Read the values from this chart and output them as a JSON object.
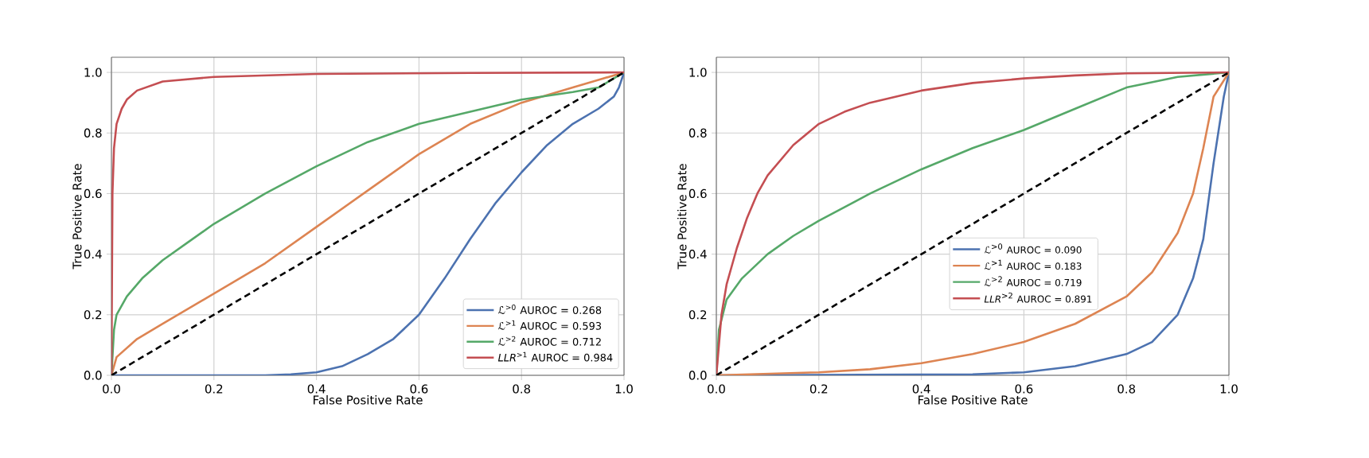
{
  "chart_data": [
    {
      "type": "line",
      "xlabel": "False Positive Rate",
      "ylabel": "True Positive Rate",
      "xlim": [
        0,
        1
      ],
      "ylim": [
        0,
        1.05
      ],
      "xticks": [
        {
          "value": 0,
          "label": "0.0"
        },
        {
          "value": 0.2,
          "label": "0.2"
        },
        {
          "value": 0.4,
          "label": "0.4"
        },
        {
          "value": 0.6,
          "label": "0.6"
        },
        {
          "value": 0.8,
          "label": "0.8"
        },
        {
          "value": 1,
          "label": "1.0"
        }
      ],
      "yticks": [
        {
          "value": 0,
          "label": "0.0"
        },
        {
          "value": 0.2,
          "label": "0.2"
        },
        {
          "value": 0.4,
          "label": "0.4"
        },
        {
          "value": 0.6,
          "label": "0.6"
        },
        {
          "value": 0.8,
          "label": "0.8"
        },
        {
          "value": 1,
          "label": "1.0"
        }
      ],
      "grid": true,
      "legend": "bottom right",
      "series": [
        {
          "name": "ℒ$^{>0}$ AUROC = 0.268",
          "color": "#4c72b0",
          "x": [
            0,
            0.3,
            0.35,
            0.4,
            0.45,
            0.5,
            0.55,
            0.6,
            0.65,
            0.7,
            0.75,
            0.8,
            0.85,
            0.9,
            0.95,
            0.98,
            0.99,
            1
          ],
          "values": [
            0,
            0,
            0.003,
            0.01,
            0.03,
            0.07,
            0.12,
            0.2,
            0.32,
            0.45,
            0.57,
            0.67,
            0.76,
            0.83,
            0.88,
            0.92,
            0.95,
            1
          ]
        },
        {
          "name": "ℒ$^{>1}$ AUROC = 0.593",
          "color": "#dd8452",
          "x": [
            0,
            0.01,
            0.05,
            0.1,
            0.2,
            0.3,
            0.4,
            0.5,
            0.6,
            0.7,
            0.8,
            0.9,
            0.95,
            1
          ],
          "values": [
            0,
            0.06,
            0.12,
            0.17,
            0.27,
            0.37,
            0.49,
            0.61,
            0.73,
            0.83,
            0.9,
            0.95,
            0.975,
            1
          ]
        },
        {
          "name": "ℒ$^{>2}$ AUROC = 0.712",
          "color": "#55a868",
          "x": [
            0,
            0.005,
            0.01,
            0.03,
            0.06,
            0.1,
            0.15,
            0.2,
            0.3,
            0.4,
            0.5,
            0.6,
            0.7,
            0.8,
            0.9,
            0.95,
            1
          ],
          "values": [
            0,
            0.15,
            0.2,
            0.26,
            0.32,
            0.38,
            0.44,
            0.5,
            0.6,
            0.69,
            0.77,
            0.83,
            0.87,
            0.91,
            0.935,
            0.95,
            1
          ]
        },
        {
          "name": "*LLR*$^{>1}$ AUROC = 0.984",
          "color": "#c44e52",
          "x": [
            0,
            0.002,
            0.005,
            0.01,
            0.02,
            0.03,
            0.05,
            0.1,
            0.2,
            0.4,
            0.7,
            1
          ],
          "values": [
            0,
            0.6,
            0.75,
            0.83,
            0.88,
            0.91,
            0.94,
            0.97,
            0.985,
            0.995,
            0.998,
            1
          ]
        },
        {
          "color": "#000000",
          "line_style": "dashed",
          "x": [
            0,
            1
          ],
          "values": [
            0,
            1
          ]
        }
      ]
    },
    {
      "type": "line",
      "xlabel": "False Positive Rate",
      "ylabel": "True Positive Rate",
      "xlim": [
        0,
        1
      ],
      "ylim": [
        0,
        1.05
      ],
      "xticks": [
        {
          "value": 0,
          "label": "0.0"
        },
        {
          "value": 0.2,
          "label": "0.2"
        },
        {
          "value": 0.4,
          "label": "0.4"
        },
        {
          "value": 0.6,
          "label": "0.6"
        },
        {
          "value": 0.8,
          "label": "0.8"
        },
        {
          "value": 1,
          "label": "1.0"
        }
      ],
      "yticks": [
        {
          "value": 0,
          "label": "0.0"
        },
        {
          "value": 0.2,
          "label": "0.2"
        },
        {
          "value": 0.4,
          "label": "0.4"
        },
        {
          "value": 0.6,
          "label": "0.6"
        },
        {
          "value": 0.8,
          "label": "0.8"
        },
        {
          "value": 1,
          "label": "1.0"
        }
      ],
      "grid": true,
      "legend": "bottom right",
      "series": [
        {
          "name": "ℒ$^{>0}$ AUROC = 0.090",
          "color": "#4c72b0",
          "x": [
            0,
            0.5,
            0.6,
            0.7,
            0.8,
            0.85,
            0.9,
            0.93,
            0.95,
            0.97,
            0.99,
            1
          ],
          "values": [
            0,
            0.003,
            0.01,
            0.03,
            0.07,
            0.11,
            0.2,
            0.32,
            0.45,
            0.7,
            0.92,
            1
          ]
        },
        {
          "name": "ℒ$^{>1}$ AUROC = 0.183",
          "color": "#dd8452",
          "x": [
            0,
            0.2,
            0.3,
            0.4,
            0.5,
            0.6,
            0.7,
            0.8,
            0.85,
            0.9,
            0.93,
            0.95,
            0.97,
            1
          ],
          "values": [
            0,
            0.01,
            0.02,
            0.04,
            0.07,
            0.11,
            0.17,
            0.26,
            0.34,
            0.47,
            0.6,
            0.75,
            0.92,
            1
          ]
        },
        {
          "name": "ℒ$^{>2}$ AUROC = 0.719",
          "color": "#55a868",
          "x": [
            0,
            0.005,
            0.02,
            0.05,
            0.1,
            0.15,
            0.2,
            0.3,
            0.4,
            0.5,
            0.6,
            0.7,
            0.8,
            0.9,
            1
          ],
          "values": [
            0,
            0.15,
            0.25,
            0.32,
            0.4,
            0.46,
            0.51,
            0.6,
            0.68,
            0.75,
            0.81,
            0.88,
            0.95,
            0.985,
            1
          ]
        },
        {
          "name": "*LLR*$^{>2}$ AUROC = 0.891",
          "color": "#c44e52",
          "x": [
            0,
            0.01,
            0.02,
            0.04,
            0.06,
            0.08,
            0.1,
            0.15,
            0.2,
            0.25,
            0.3,
            0.4,
            0.5,
            0.6,
            0.7,
            0.8,
            1
          ],
          "values": [
            0,
            0.2,
            0.3,
            0.42,
            0.52,
            0.6,
            0.66,
            0.76,
            0.83,
            0.87,
            0.9,
            0.94,
            0.965,
            0.98,
            0.99,
            0.997,
            1
          ]
        },
        {
          "color": "#000000",
          "line_style": "dashed",
          "x": [
            0,
            1
          ],
          "values": [
            0,
            1
          ]
        }
      ]
    }
  ]
}
